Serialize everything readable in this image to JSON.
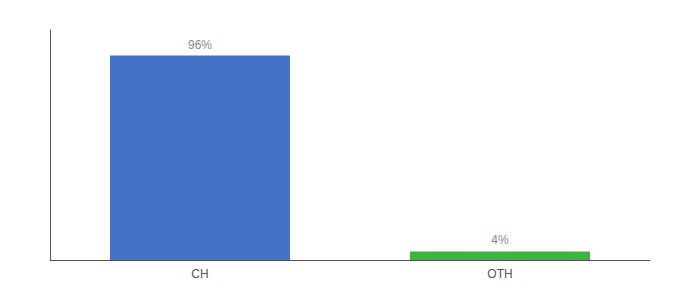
{
  "chart_data": {
    "type": "bar",
    "categories": [
      "CH",
      "OTH"
    ],
    "values": [
      96,
      4
    ],
    "value_labels": [
      "96%",
      "4%"
    ],
    "data_labels": true,
    "colors": [
      "#4472c4",
      "#3db53d"
    ],
    "ylim": [
      0,
      108
    ],
    "tick_labels": "x",
    "grid": false
  }
}
